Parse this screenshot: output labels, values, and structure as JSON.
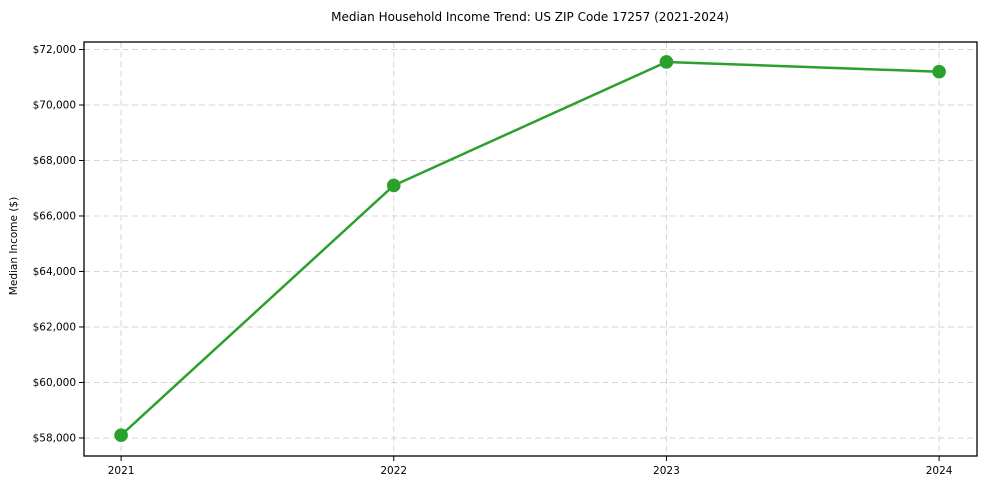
{
  "chart_data": {
    "type": "line",
    "title": "Median Household Income Trend: US ZIP Code 17257 (2021-2024)",
    "xlabel": "",
    "ylabel": "Median Income ($)",
    "x": [
      2021,
      2022,
      2023,
      2024
    ],
    "series": [
      {
        "name": "median-household-income",
        "values": [
          58100,
          67100,
          71550,
          71200
        ],
        "color": "#2ca02c",
        "marker": "circle"
      }
    ],
    "xticks": [
      2021,
      2022,
      2023,
      2024
    ],
    "xtick_labels": [
      "2021",
      "2022",
      "2023",
      "2024"
    ],
    "yticks": [
      58000,
      60000,
      62000,
      64000,
      66000,
      68000,
      70000,
      72000
    ],
    "ytick_labels": [
      "$58,000",
      "$60,000",
      "$62,000",
      "$64,000",
      "$66,000",
      "$68,000",
      "$70,000",
      "$72,000"
    ],
    "xlim": [
      2020.864,
      2024.139
    ],
    "ylim": [
      57350,
      72270
    ],
    "grid": true,
    "grid_style": "dashed",
    "grid_color": "#d5d5d5",
    "axis_color": "#000000",
    "background_color": "#ffffff",
    "legend": "none"
  }
}
